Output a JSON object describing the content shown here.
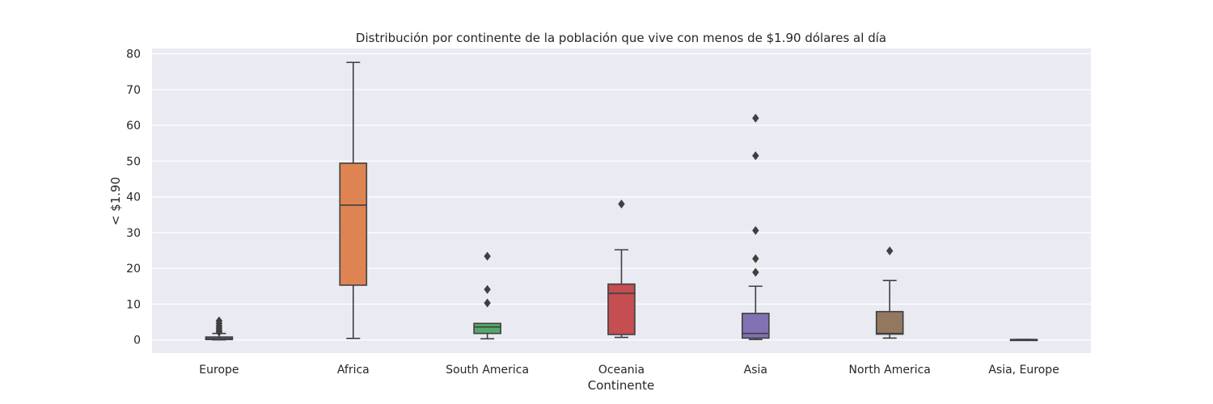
{
  "chart_data": {
    "type": "box",
    "title": "Distribución por continente de la población que vive con menos de $1.90 dólares al día",
    "xlabel": "Continente",
    "ylabel": "< $1.90",
    "ylim": [
      -3.7,
      81.5
    ],
    "yticks": [
      0,
      10,
      20,
      30,
      40,
      50,
      60,
      70,
      80
    ],
    "grid": true,
    "categories": [
      "Europe",
      "Africa",
      "South America",
      "Oceania",
      "Asia",
      "North America",
      "Asia, Europe"
    ],
    "boxes": [
      {
        "category": "Europe",
        "whisker_low": 0.0,
        "q1": 0.1,
        "median": 0.3,
        "q3": 0.8,
        "whisker_high": 1.8,
        "outliers": [
          2.2,
          2.7,
          3.3,
          3.9,
          4.6,
          5.3
        ],
        "color": "#4c72b0"
      },
      {
        "category": "Africa",
        "whisker_low": 0.4,
        "q1": 15.3,
        "median": 37.7,
        "q3": 49.4,
        "whisker_high": 77.6,
        "outliers": [],
        "color": "#dd8452"
      },
      {
        "category": "South America",
        "whisker_low": 0.3,
        "q1": 1.8,
        "median": 3.6,
        "q3": 4.6,
        "whisker_high": 4.6,
        "outliers": [
          10.3,
          14.1,
          23.4
        ],
        "color": "#55a868"
      },
      {
        "category": "Oceania",
        "whisker_low": 0.7,
        "q1": 1.5,
        "median": 13.0,
        "q3": 15.6,
        "whisker_high": 25.2,
        "outliers": [
          38.0
        ],
        "color": "#c44e52"
      },
      {
        "category": "Asia",
        "whisker_low": 0.1,
        "q1": 0.5,
        "median": 1.8,
        "q3": 7.4,
        "whisker_high": 15.0,
        "outliers": [
          18.9,
          22.7,
          30.6,
          51.5,
          62.0
        ],
        "color": "#8172b3"
      },
      {
        "category": "North America",
        "whisker_low": 0.5,
        "q1": 1.6,
        "median": 1.8,
        "q3": 7.9,
        "whisker_high": 16.6,
        "outliers": [
          24.9
        ],
        "color": "#937860"
      },
      {
        "category": "Asia, Europe",
        "whisker_low": 0.1,
        "q1": 0.1,
        "median": 0.1,
        "q3": 0.1,
        "whisker_high": 0.1,
        "outliers": [],
        "color": "#da8bc3"
      }
    ]
  }
}
